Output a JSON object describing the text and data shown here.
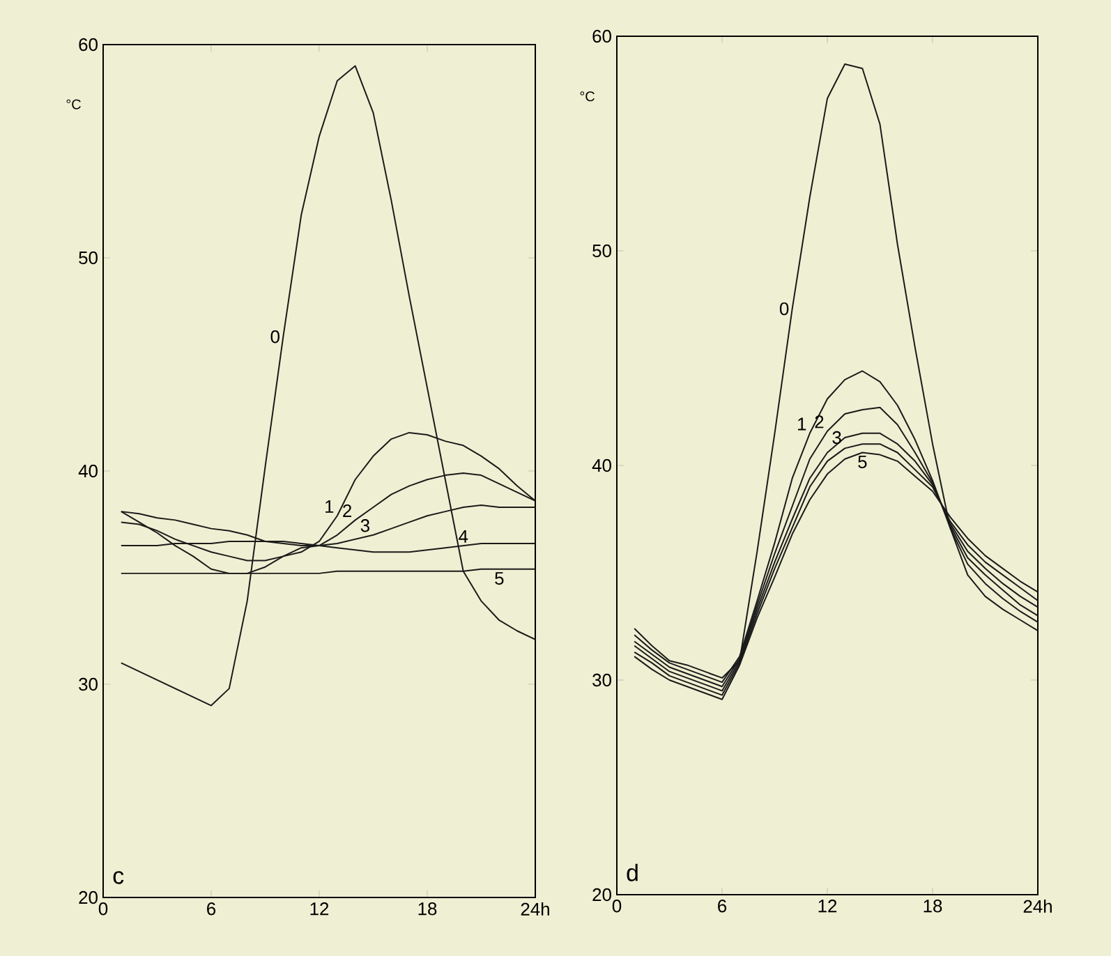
{
  "chart_data": [
    {
      "type": "line",
      "ylabel": "°C",
      "annotations": [
        "c"
      ],
      "xlim": [
        0,
        24
      ],
      "ylim": [
        20,
        60
      ],
      "xticks": [
        0,
        6,
        12,
        18,
        {
          "value": 24,
          "label": "24h"
        }
      ],
      "yticks": [
        20,
        30,
        40,
        50,
        60
      ],
      "x": [
        1,
        2,
        3,
        4,
        5,
        6,
        7,
        8,
        9,
        10,
        11,
        12,
        13,
        14,
        15,
        16,
        17,
        18,
        19,
        20,
        21,
        22,
        23,
        24
      ],
      "series": [
        {
          "name": "0",
          "color": "#1a1a1a",
          "values": [
            31.0,
            30.6,
            30.2,
            29.8,
            29.4,
            29.0,
            29.8,
            33.9,
            40.2,
            46.3,
            52.0,
            55.7,
            58.3,
            59.0,
            56.8,
            52.7,
            48.2,
            43.9,
            39.6,
            35.3,
            33.9,
            33.0,
            32.5,
            32.1
          ]
        },
        {
          "name": "1",
          "color": "#1a1a1a",
          "values": [
            38.1,
            37.6,
            37.1,
            36.5,
            36.0,
            35.4,
            35.2,
            35.2,
            35.5,
            36.0,
            36.2,
            36.7,
            37.9,
            39.6,
            40.7,
            41.5,
            41.8,
            41.7,
            41.4,
            41.2,
            40.7,
            40.1,
            39.3,
            38.6
          ]
        },
        {
          "name": "2",
          "color": "#1a1a1a",
          "values": [
            37.6,
            37.5,
            37.2,
            36.8,
            36.5,
            36.2,
            36.0,
            35.8,
            35.8,
            36.0,
            36.4,
            36.5,
            37.0,
            37.7,
            38.3,
            38.9,
            39.3,
            39.6,
            39.8,
            39.9,
            39.8,
            39.4,
            39.0,
            38.6
          ]
        },
        {
          "name": "3",
          "color": "#1a1a1a",
          "values": [
            38.1,
            38.0,
            37.8,
            37.7,
            37.5,
            37.3,
            37.2,
            37.0,
            36.7,
            36.6,
            36.5,
            36.5,
            36.6,
            36.8,
            37.0,
            37.3,
            37.6,
            37.9,
            38.1,
            38.3,
            38.4,
            38.3,
            38.3,
            38.3
          ]
        },
        {
          "name": "4",
          "color": "#1a1a1a",
          "values": [
            36.5,
            36.5,
            36.5,
            36.6,
            36.6,
            36.6,
            36.7,
            36.7,
            36.7,
            36.7,
            36.6,
            36.5,
            36.4,
            36.3,
            36.2,
            36.2,
            36.2,
            36.3,
            36.4,
            36.5,
            36.6,
            36.6,
            36.6,
            36.6
          ]
        },
        {
          "name": "5",
          "color": "#1a1a1a",
          "values": [
            35.2,
            35.2,
            35.2,
            35.2,
            35.2,
            35.2,
            35.2,
            35.2,
            35.2,
            35.2,
            35.2,
            35.2,
            35.3,
            35.3,
            35.3,
            35.3,
            35.3,
            35.3,
            35.3,
            35.3,
            35.4,
            35.4,
            35.4,
            35.4
          ]
        }
      ]
    },
    {
      "type": "line",
      "ylabel": "°C",
      "annotations": [
        "d"
      ],
      "xlim": [
        0,
        24
      ],
      "ylim": [
        20,
        60
      ],
      "xticks": [
        0,
        6,
        12,
        18,
        {
          "value": 24,
          "label": "24h"
        }
      ],
      "yticks": [
        20,
        30,
        40,
        50,
        60
      ],
      "x": [
        1,
        2,
        3,
        4,
        5,
        6,
        7,
        8,
        9,
        10,
        11,
        12,
        13,
        14,
        15,
        16,
        17,
        18,
        19,
        20,
        21,
        22,
        23,
        24
      ],
      "series": [
        {
          "name": "0",
          "color": "#1a1a1a",
          "values": [
            32.4,
            31.6,
            30.9,
            30.7,
            30.4,
            30.1,
            30.9,
            36.0,
            41.5,
            47.3,
            52.5,
            57.1,
            58.7,
            58.5,
            55.9,
            50.3,
            45.5,
            41.0,
            37.1,
            34.9,
            33.9,
            33.3,
            32.8,
            32.3
          ]
        },
        {
          "name": "1",
          "color": "#1a1a1a",
          "values": [
            32.1,
            31.4,
            30.8,
            30.5,
            30.2,
            29.9,
            31.1,
            33.7,
            36.4,
            39.4,
            41.5,
            43.1,
            44.0,
            44.4,
            43.9,
            42.8,
            41.2,
            39.3,
            37.1,
            35.4,
            34.5,
            33.8,
            33.2,
            32.7
          ]
        },
        {
          "name": "2",
          "color": "#1a1a1a",
          "values": [
            31.8,
            31.2,
            30.6,
            30.3,
            30.0,
            29.7,
            31.0,
            33.5,
            35.9,
            38.1,
            40.3,
            41.6,
            42.4,
            42.6,
            42.7,
            41.9,
            40.6,
            39.2,
            37.2,
            35.7,
            34.9,
            34.2,
            33.5,
            33.0
          ]
        },
        {
          "name": "3",
          "color": "#1a1a1a",
          "values": [
            31.6,
            31.0,
            30.4,
            30.1,
            29.8,
            29.5,
            30.9,
            33.3,
            35.5,
            37.5,
            39.4,
            40.6,
            41.3,
            41.5,
            41.5,
            41.0,
            40.2,
            39.1,
            37.3,
            36.0,
            35.2,
            34.5,
            33.9,
            33.4
          ]
        },
        {
          "color": "#1a1a1a",
          "values": [
            31.3,
            30.8,
            30.2,
            29.9,
            29.6,
            29.3,
            30.8,
            33.1,
            35.2,
            37.1,
            39.0,
            40.2,
            40.8,
            41.0,
            41.0,
            40.6,
            39.8,
            39.0,
            37.4,
            36.3,
            35.5,
            34.9,
            34.3,
            33.7
          ]
        },
        {
          "name": "5",
          "color": "#1a1a1a",
          "values": [
            31.1,
            30.5,
            30.0,
            29.7,
            29.4,
            29.1,
            30.7,
            32.9,
            34.8,
            36.8,
            38.4,
            39.6,
            40.3,
            40.6,
            40.5,
            40.2,
            39.5,
            38.8,
            37.6,
            36.6,
            35.8,
            35.2,
            34.6,
            34.1
          ]
        }
      ]
    }
  ]
}
